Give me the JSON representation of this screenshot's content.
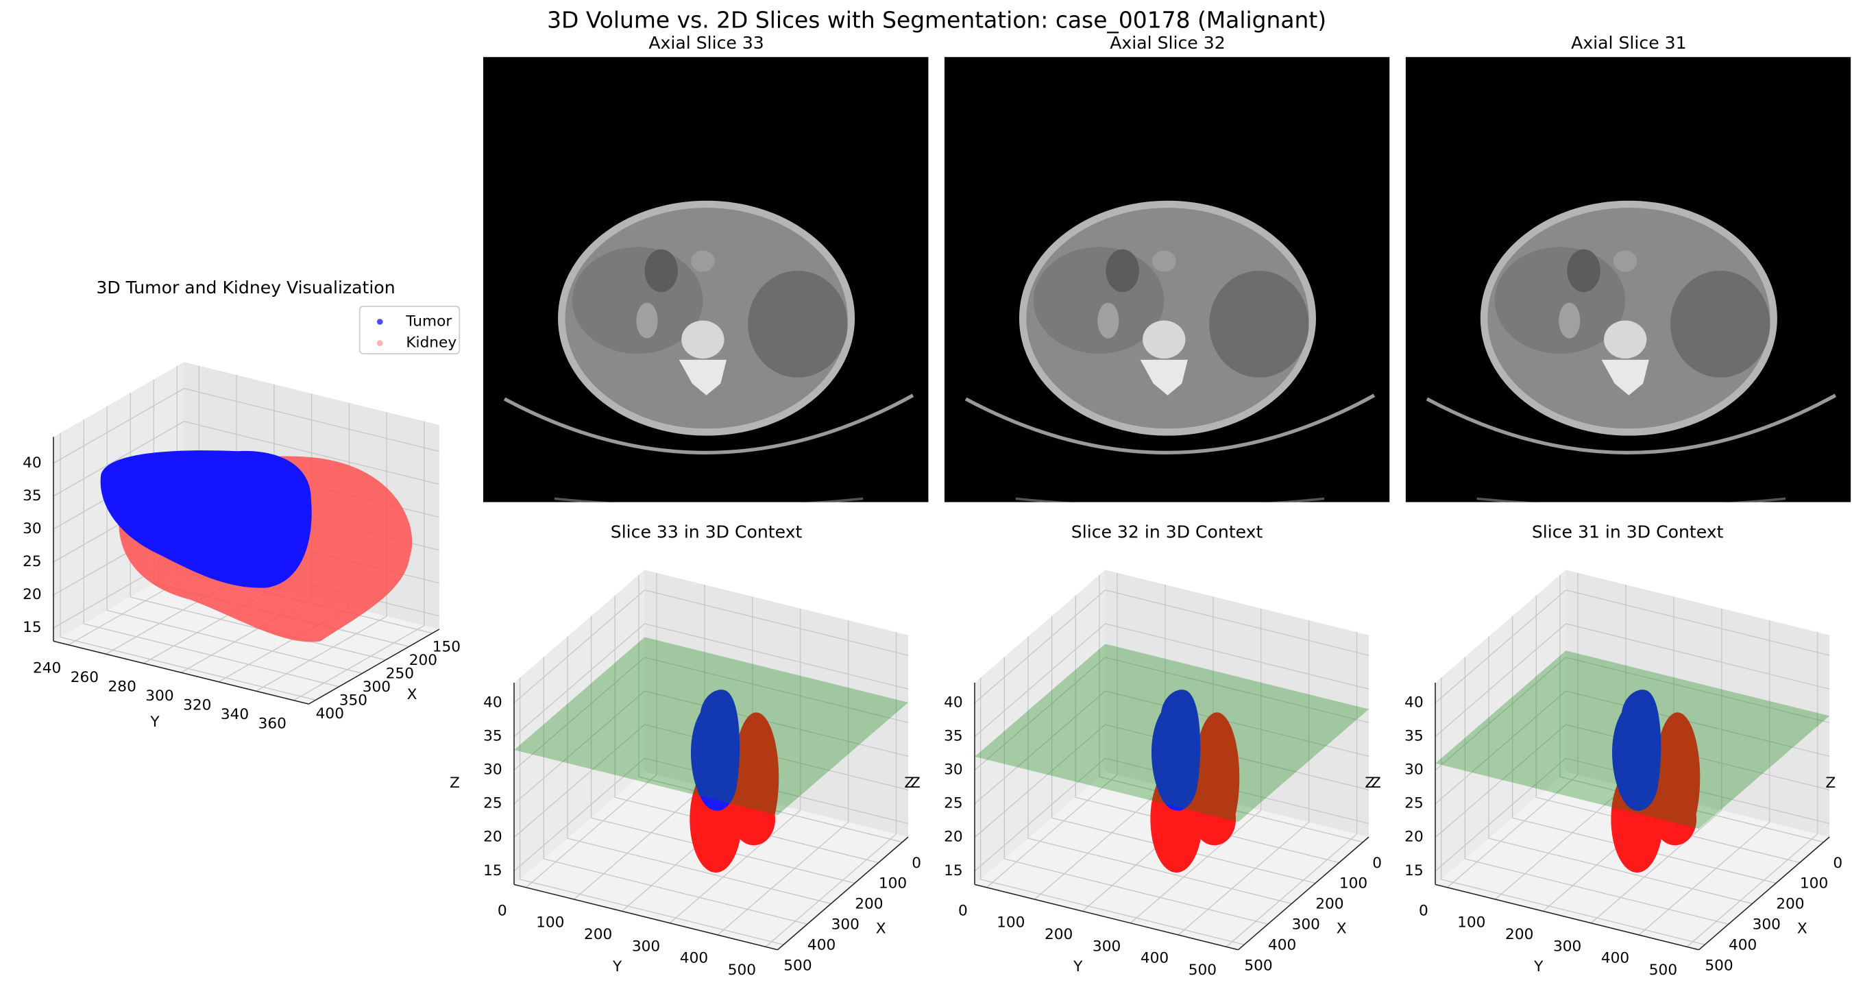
{
  "title": "3D Volume vs. 2D Slices with Segmentation: case_00178 (Malignant)",
  "chart_data": [
    {
      "type": "scatter3d",
      "title": "3D Tumor and Kidney Visualization",
      "xlabel": "X",
      "ylabel": "Y",
      "xlim": [
        135,
        415
      ],
      "ylim": [
        232,
        368
      ],
      "zlim": [
        13,
        44
      ],
      "xticks": [
        150,
        200,
        250,
        300,
        350,
        400
      ],
      "yticks": [
        240,
        260,
        280,
        300,
        320,
        340,
        360
      ],
      "zticks": [
        15,
        20,
        25,
        30,
        35,
        40
      ],
      "series": [
        {
          "name": "Tumor",
          "color": "blue"
        },
        {
          "name": "Kidney",
          "color": "red"
        }
      ],
      "legend": "upper right"
    },
    {
      "type": "image",
      "title": "Axial Slice 33"
    },
    {
      "type": "image",
      "title": "Axial Slice 32"
    },
    {
      "type": "image",
      "title": "Axial Slice 31"
    },
    {
      "type": "plane3d",
      "title": "Slice 33 in 3D Context",
      "slice": 33,
      "plane_color": "green",
      "xlabel": "X",
      "ylabel": "Y",
      "zlabel": "Z",
      "xlim": [
        -25,
        525
      ],
      "ylim": [
        -25,
        525
      ],
      "zlim": [
        13,
        43
      ],
      "xticks": [
        0,
        100,
        200,
        300,
        400,
        500
      ],
      "yticks": [
        0,
        100,
        200,
        300,
        400,
        500
      ],
      "zticks": [
        15,
        20,
        25,
        30,
        35,
        40
      ]
    },
    {
      "type": "plane3d",
      "title": "Slice 32 in 3D Context",
      "slice": 32,
      "plane_color": "green",
      "xlabel": "X",
      "ylabel": "Y",
      "zlabel": "Z",
      "xlim": [
        -25,
        525
      ],
      "ylim": [
        -25,
        525
      ],
      "zlim": [
        13,
        43
      ],
      "xticks": [
        0,
        100,
        200,
        300,
        400,
        500
      ],
      "yticks": [
        0,
        100,
        200,
        300,
        400,
        500
      ],
      "zticks": [
        15,
        20,
        25,
        30,
        35,
        40
      ]
    },
    {
      "type": "plane3d",
      "title": "Slice 31 in 3D Context",
      "slice": 31,
      "plane_color": "green",
      "xlabel": "X",
      "ylabel": "Y",
      "zlabel": "Z",
      "xlim": [
        -25,
        525
      ],
      "ylim": [
        -25,
        525
      ],
      "zlim": [
        13,
        43
      ],
      "xticks": [
        0,
        100,
        200,
        300,
        400,
        500
      ],
      "yticks": [
        0,
        100,
        200,
        300,
        400,
        500
      ],
      "zticks": [
        15,
        20,
        25,
        30,
        35,
        40
      ]
    }
  ]
}
